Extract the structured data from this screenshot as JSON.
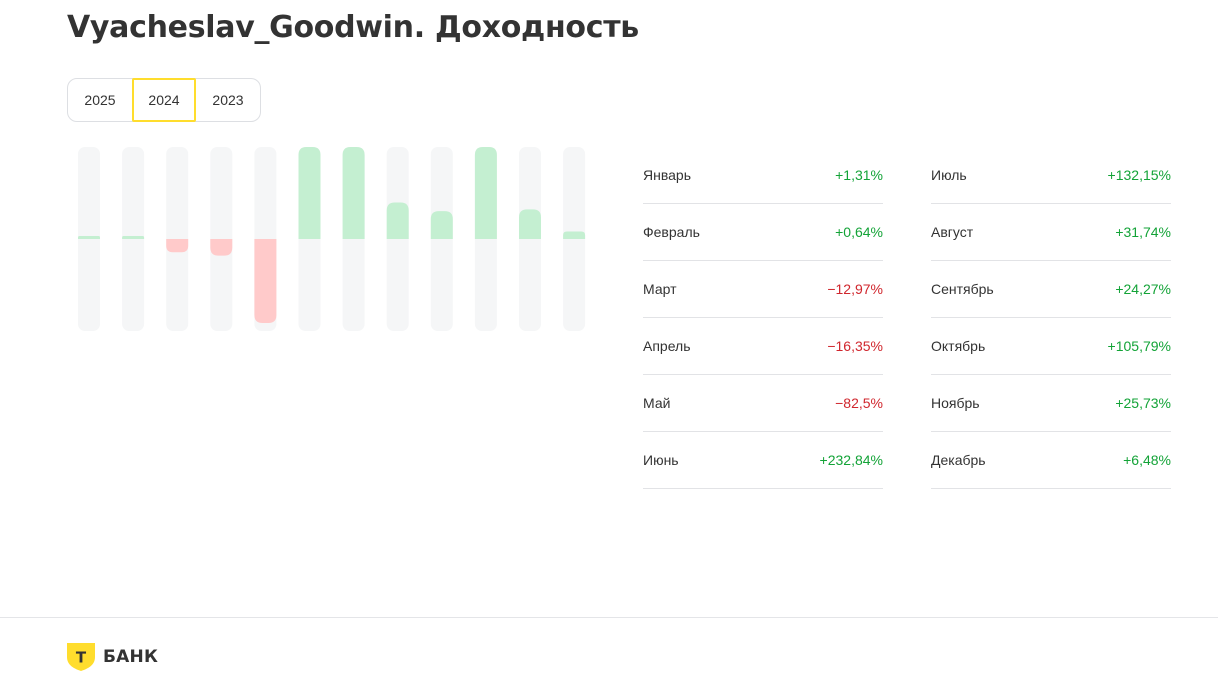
{
  "title": "Vyacheslav_Goodwin. Доходность",
  "years": [
    {
      "label": "2025",
      "active": false
    },
    {
      "label": "2024",
      "active": true
    },
    {
      "label": "2023",
      "active": false
    }
  ],
  "months": [
    {
      "name": "Январь",
      "value": "+1,31%"
    },
    {
      "name": "Февраль",
      "value": "+0,64%"
    },
    {
      "name": "Март",
      "value": "−12,97%"
    },
    {
      "name": "Апрель",
      "value": "−16,35%"
    },
    {
      "name": "Май",
      "value": "−82,5%"
    },
    {
      "name": "Июнь",
      "value": "+232,84%"
    },
    {
      "name": "Июль",
      "value": "+132,15%"
    },
    {
      "name": "Август",
      "value": "+31,74%"
    },
    {
      "name": "Сентябрь",
      "value": "+24,27%"
    },
    {
      "name": "Октябрь",
      "value": "+105,79%"
    },
    {
      "name": "Ноябрь",
      "value": "+25,73%"
    },
    {
      "name": "Декабрь",
      "value": "+6,48%"
    }
  ],
  "chart_data": {
    "type": "bar",
    "categories": [
      "Январь",
      "Февраль",
      "Март",
      "Апрель",
      "Май",
      "Июнь",
      "Июль",
      "Август",
      "Сентябрь",
      "Октябрь",
      "Ноябрь",
      "Декабрь"
    ],
    "values": [
      1.31,
      0.64,
      -12.97,
      -16.35,
      -82.5,
      232.84,
      132.15,
      31.74,
      24.27,
      105.79,
      25.73,
      6.48
    ],
    "title": "",
    "xlabel": "",
    "ylabel": "",
    "colors": {
      "positive": "#c4efd1",
      "negative": "#ffcaca",
      "track": "#f5f6f7"
    }
  },
  "footer": {
    "logo_letter": "Т",
    "logo_text": "БАНК"
  },
  "colors": {
    "accent": "#ffdd2d",
    "positive_text": "#13a337",
    "negative_text": "#d0262d"
  }
}
